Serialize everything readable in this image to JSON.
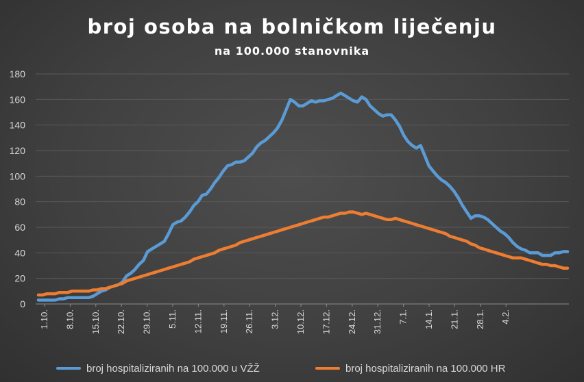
{
  "chart_data": {
    "type": "line",
    "title": "broj osoba na bolničkom liječenju",
    "subtitle": "na 100.000 stanovnika",
    "xlabel": "",
    "ylabel": "",
    "ylim": [
      0,
      180
    ],
    "yticks": [
      "0",
      "20",
      "40",
      "60",
      "80",
      "100",
      "120",
      "140",
      "160",
      "180"
    ],
    "x_tick_labels": [
      "1.10.",
      "8.10.",
      "15.10.",
      "22.10.",
      "29.10.",
      "5.11.",
      "12.11.",
      "19.11.",
      "26.11.",
      "3.12.",
      "10.12.",
      "17.12.",
      "24.12.",
      "31.12.",
      "7.1.",
      "14.1.",
      "21.1.",
      "28.1.",
      "4.2."
    ],
    "grid": "horizontal",
    "legend_position": "bottom",
    "series": [
      {
        "name": "broj hospitaliziranih na 100.000 u VŽŽ",
        "color": "#5b9bd5",
        "values": [
          3,
          3,
          3,
          3,
          3,
          4,
          4,
          5,
          5,
          5,
          5,
          5,
          5,
          6,
          8,
          10,
          11,
          13,
          14,
          15,
          17,
          22,
          24,
          27,
          31,
          34,
          41,
          43,
          45,
          47,
          49,
          55,
          62,
          64,
          65,
          68,
          72,
          77,
          80,
          85,
          86,
          90,
          95,
          99,
          104,
          108,
          109,
          111,
          111,
          112,
          115,
          118,
          123,
          126,
          128,
          131,
          134,
          138,
          144,
          152,
          160,
          158,
          155,
          155,
          157,
          159,
          158,
          159,
          159,
          160,
          161,
          163,
          165,
          163,
          161,
          159,
          158,
          162,
          160,
          155,
          152,
          149,
          147,
          148,
          148,
          144,
          139,
          132,
          127,
          124,
          122,
          124,
          116,
          108,
          104,
          100,
          97,
          95,
          92,
          88,
          83,
          77,
          72,
          67,
          69,
          69,
          68,
          66,
          63,
          60,
          57,
          55,
          52,
          48,
          45,
          43,
          42,
          40,
          40,
          40,
          38,
          38,
          38,
          40,
          40,
          41,
          41
        ]
      },
      {
        "name": "broj hospitaliziranih na 100.000 HR",
        "color": "#ed7d31",
        "values": [
          7,
          7,
          8,
          8,
          8,
          9,
          9,
          9,
          10,
          10,
          10,
          10,
          10,
          11,
          11,
          12,
          12,
          13,
          14,
          15,
          16,
          18,
          19,
          20,
          21,
          22,
          23,
          24,
          25,
          26,
          27,
          28,
          29,
          30,
          31,
          32,
          33,
          35,
          36,
          37,
          38,
          39,
          40,
          42,
          43,
          44,
          45,
          46,
          48,
          49,
          50,
          51,
          52,
          53,
          54,
          55,
          56,
          57,
          58,
          59,
          60,
          61,
          62,
          63,
          64,
          65,
          66,
          67,
          68,
          68,
          69,
          70,
          71,
          71,
          72,
          72,
          71,
          70,
          71,
          70,
          69,
          68,
          67,
          66,
          66,
          67,
          66,
          65,
          64,
          63,
          62,
          61,
          60,
          59,
          58,
          57,
          56,
          55,
          53,
          52,
          51,
          50,
          49,
          47,
          46,
          44,
          43,
          42,
          41,
          40,
          39,
          38,
          37,
          36,
          36,
          36,
          35,
          34,
          33,
          32,
          31,
          31,
          30,
          30,
          29,
          28,
          28
        ]
      }
    ]
  }
}
